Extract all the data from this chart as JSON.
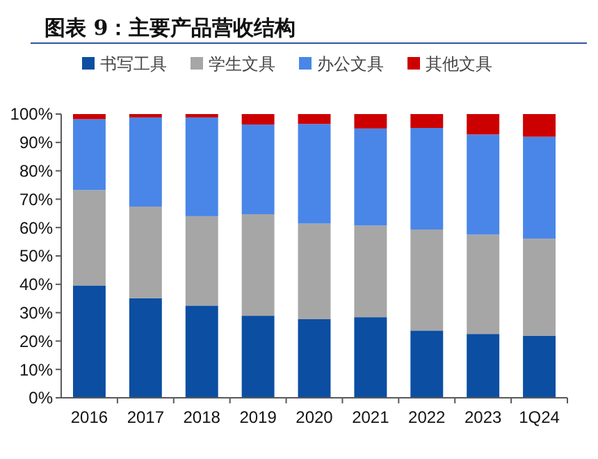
{
  "chart_data": {
    "type": "bar",
    "title": "图表 9：主要产品营收结构",
    "stacked": true,
    "legend": "top",
    "grid": false,
    "categories": [
      "2016",
      "2017",
      "2018",
      "2019",
      "2020",
      "2021",
      "2022",
      "2023",
      "1Q24"
    ],
    "series": [
      {
        "name": "书写工具",
        "color": "#0c4ea2",
        "values": [
          39.6,
          35.1,
          32.5,
          28.9,
          27.7,
          28.4,
          23.7,
          22.5,
          21.9
        ]
      },
      {
        "name": "学生文具",
        "color": "#a6a6a6",
        "values": [
          33.6,
          32.3,
          31.5,
          35.8,
          33.7,
          32.3,
          35.6,
          35.0,
          34.2
        ]
      },
      {
        "name": "办公文具",
        "color": "#4a86e8",
        "values": [
          25.0,
          31.4,
          34.8,
          31.6,
          35.1,
          34.2,
          35.8,
          35.3,
          35.9
        ]
      },
      {
        "name": "其他文具",
        "color": "#cc0000",
        "values": [
          1.8,
          1.2,
          1.2,
          3.7,
          3.5,
          5.1,
          4.9,
          7.2,
          8.0
        ]
      }
    ],
    "ylim": [
      0,
      100
    ],
    "yticks": [
      {
        "value": 0,
        "label": "0%"
      },
      {
        "value": 10,
        "label": "10%"
      },
      {
        "value": 20,
        "label": "20%"
      },
      {
        "value": 30,
        "label": "30%"
      },
      {
        "value": 40,
        "label": "40%"
      },
      {
        "value": 50,
        "label": "50%"
      },
      {
        "value": 60,
        "label": "60%"
      },
      {
        "value": 70,
        "label": "70%"
      },
      {
        "value": 80,
        "label": "80%"
      },
      {
        "value": 90,
        "label": "90%"
      },
      {
        "value": 100,
        "label": "100%"
      }
    ]
  }
}
